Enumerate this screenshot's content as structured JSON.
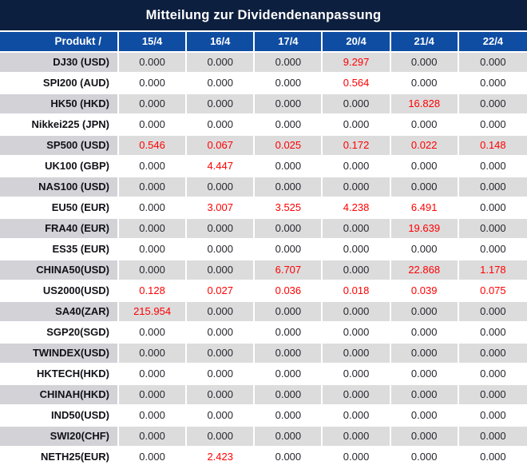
{
  "title": "Mitteilung zur Dividendenanpassung",
  "colors": {
    "title_bar_bg": "#0d1f3e",
    "header_bg": "#0f4da3",
    "header_text": "#ffffff",
    "row_alt_bg": "#dcdcdd",
    "row_alt_product_bg": "#d2d2d7",
    "row_bg": "#ffffff",
    "value_text": "#26262e",
    "highlight_red": "#ff0000"
  },
  "chart_data": {
    "type": "table",
    "title": "Mitteilung zur Dividendenanpassung",
    "columns": [
      "Produkt /",
      "15/4",
      "16/4",
      "17/4",
      "20/4",
      "21/4",
      "22/4"
    ],
    "rows": [
      {
        "product": "DJ30 (USD)",
        "values": [
          "0.000",
          "0.000",
          "0.000",
          "9.297",
          "0.000",
          "0.000"
        ],
        "red_value_indices": [
          3
        ]
      },
      {
        "product": "SPI200 (AUD)",
        "values": [
          "0.000",
          "0.000",
          "0.000",
          "0.564",
          "0.000",
          "0.000"
        ],
        "red_value_indices": [
          3
        ]
      },
      {
        "product": "HK50 (HKD)",
        "values": [
          "0.000",
          "0.000",
          "0.000",
          "0.000",
          "16.828",
          "0.000"
        ],
        "red_value_indices": [
          4
        ]
      },
      {
        "product": "Nikkei225 (JPN)",
        "values": [
          "0.000",
          "0.000",
          "0.000",
          "0.000",
          "0.000",
          "0.000"
        ],
        "red_value_indices": []
      },
      {
        "product": "SP500 (USD)",
        "values": [
          "0.546",
          "0.067",
          "0.025",
          "0.172",
          "0.022",
          "0.148"
        ],
        "red_value_indices": [
          0,
          1,
          2,
          3,
          4,
          5
        ]
      },
      {
        "product": "UK100 (GBP)",
        "values": [
          "0.000",
          "4.447",
          "0.000",
          "0.000",
          "0.000",
          "0.000"
        ],
        "red_value_indices": [
          1
        ]
      },
      {
        "product": "NAS100 (USD)",
        "values": [
          "0.000",
          "0.000",
          "0.000",
          "0.000",
          "0.000",
          "0.000"
        ],
        "red_value_indices": []
      },
      {
        "product": "EU50 (EUR)",
        "values": [
          "0.000",
          "3.007",
          "3.525",
          "4.238",
          "6.491",
          "0.000"
        ],
        "red_value_indices": [
          1,
          2,
          3,
          4
        ]
      },
      {
        "product": "FRA40 (EUR)",
        "values": [
          "0.000",
          "0.000",
          "0.000",
          "0.000",
          "19.639",
          "0.000"
        ],
        "red_value_indices": [
          4
        ]
      },
      {
        "product": "ES35 (EUR)",
        "values": [
          "0.000",
          "0.000",
          "0.000",
          "0.000",
          "0.000",
          "0.000"
        ],
        "red_value_indices": []
      },
      {
        "product": "CHINA50(USD)",
        "values": [
          "0.000",
          "0.000",
          "6.707",
          "0.000",
          "22.868",
          "1.178"
        ],
        "red_value_indices": [
          2,
          4,
          5
        ]
      },
      {
        "product": "US2000(USD)",
        "values": [
          "0.128",
          "0.027",
          "0.036",
          "0.018",
          "0.039",
          "0.075"
        ],
        "red_value_indices": [
          0,
          1,
          2,
          3,
          4,
          5
        ]
      },
      {
        "product": "SA40(ZAR)",
        "values": [
          "215.954",
          "0.000",
          "0.000",
          "0.000",
          "0.000",
          "0.000"
        ],
        "red_value_indices": [
          0
        ]
      },
      {
        "product": "SGP20(SGD)",
        "values": [
          "0.000",
          "0.000",
          "0.000",
          "0.000",
          "0.000",
          "0.000"
        ],
        "red_value_indices": []
      },
      {
        "product": "TWINDEX(USD)",
        "values": [
          "0.000",
          "0.000",
          "0.000",
          "0.000",
          "0.000",
          "0.000"
        ],
        "red_value_indices": []
      },
      {
        "product": "HKTECH(HKD)",
        "values": [
          "0.000",
          "0.000",
          "0.000",
          "0.000",
          "0.000",
          "0.000"
        ],
        "red_value_indices": []
      },
      {
        "product": "CHINAH(HKD)",
        "values": [
          "0.000",
          "0.000",
          "0.000",
          "0.000",
          "0.000",
          "0.000"
        ],
        "red_value_indices": []
      },
      {
        "product": "IND50(USD)",
        "values": [
          "0.000",
          "0.000",
          "0.000",
          "0.000",
          "0.000",
          "0.000"
        ],
        "red_value_indices": []
      },
      {
        "product": "SWI20(CHF)",
        "values": [
          "0.000",
          "0.000",
          "0.000",
          "0.000",
          "0.000",
          "0.000"
        ],
        "red_value_indices": []
      },
      {
        "product": "NETH25(EUR)",
        "values": [
          "0.000",
          "2.423",
          "0.000",
          "0.000",
          "0.000",
          "0.000"
        ],
        "red_value_indices": [
          1
        ]
      }
    ]
  }
}
